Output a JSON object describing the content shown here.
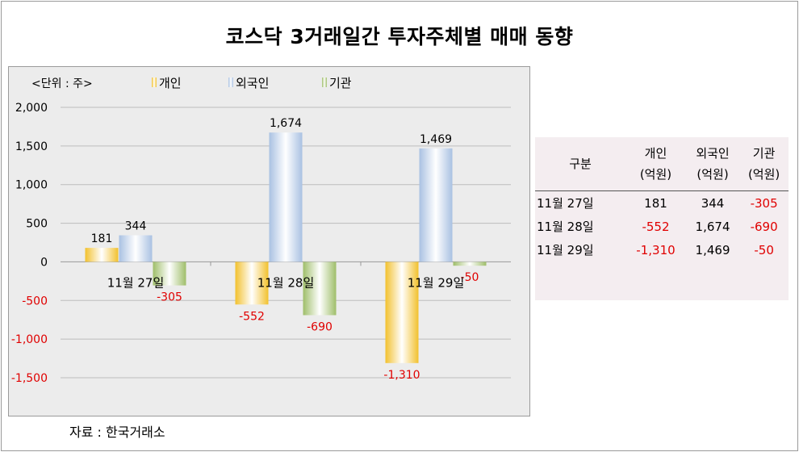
{
  "title": "코스닥 3거래일간 투자주체별 매매 동향",
  "source": "자료 : 한국거래소",
  "chart_data": {
    "type": "bar",
    "unit_label": "<단위 : 주>",
    "categories": [
      "11월 27일",
      "11월 28일",
      "11월 29일"
    ],
    "series": [
      {
        "name": "개인",
        "values": [
          181,
          -552,
          -1310
        ],
        "color": "#f2c12e"
      },
      {
        "name": "외국인",
        "values": [
          344,
          1674,
          1469
        ],
        "color": "#a9c1e2"
      },
      {
        "name": "기관",
        "values": [
          -305,
          -690,
          -50
        ],
        "color": "#9fbe6a"
      }
    ],
    "data_labels": [
      [
        "181",
        "344",
        "-305"
      ],
      [
        "-552",
        "1,674",
        "-690"
      ],
      [
        "-1,310",
        "1,469",
        "-50"
      ]
    ],
    "y_ticks": [
      2000,
      1500,
      1000,
      500,
      0,
      -500,
      -1000,
      -1500
    ],
    "y_tick_labels": [
      "2,000",
      "1,500",
      "1,000",
      "500",
      "0",
      "-500",
      "-1,000",
      "-1,500"
    ],
    "ylim": [
      -1500,
      2000
    ],
    "grid": true,
    "legend_position": "top",
    "negative_label_color": "#e00000"
  },
  "table": {
    "headers": [
      {
        "line1": "구분",
        "line2": ""
      },
      {
        "line1": "개인",
        "line2": "(억원)"
      },
      {
        "line1": "외국인",
        "line2": "(억원)"
      },
      {
        "line1": "기관",
        "line2": "(억원)"
      }
    ],
    "rows": [
      [
        "11월 27일",
        "181",
        "344",
        "-305"
      ],
      [
        "11월 28일",
        "-552",
        "1,674",
        "-690"
      ],
      [
        "11월 29일",
        "-1,310",
        "1,469",
        "-50"
      ]
    ]
  }
}
